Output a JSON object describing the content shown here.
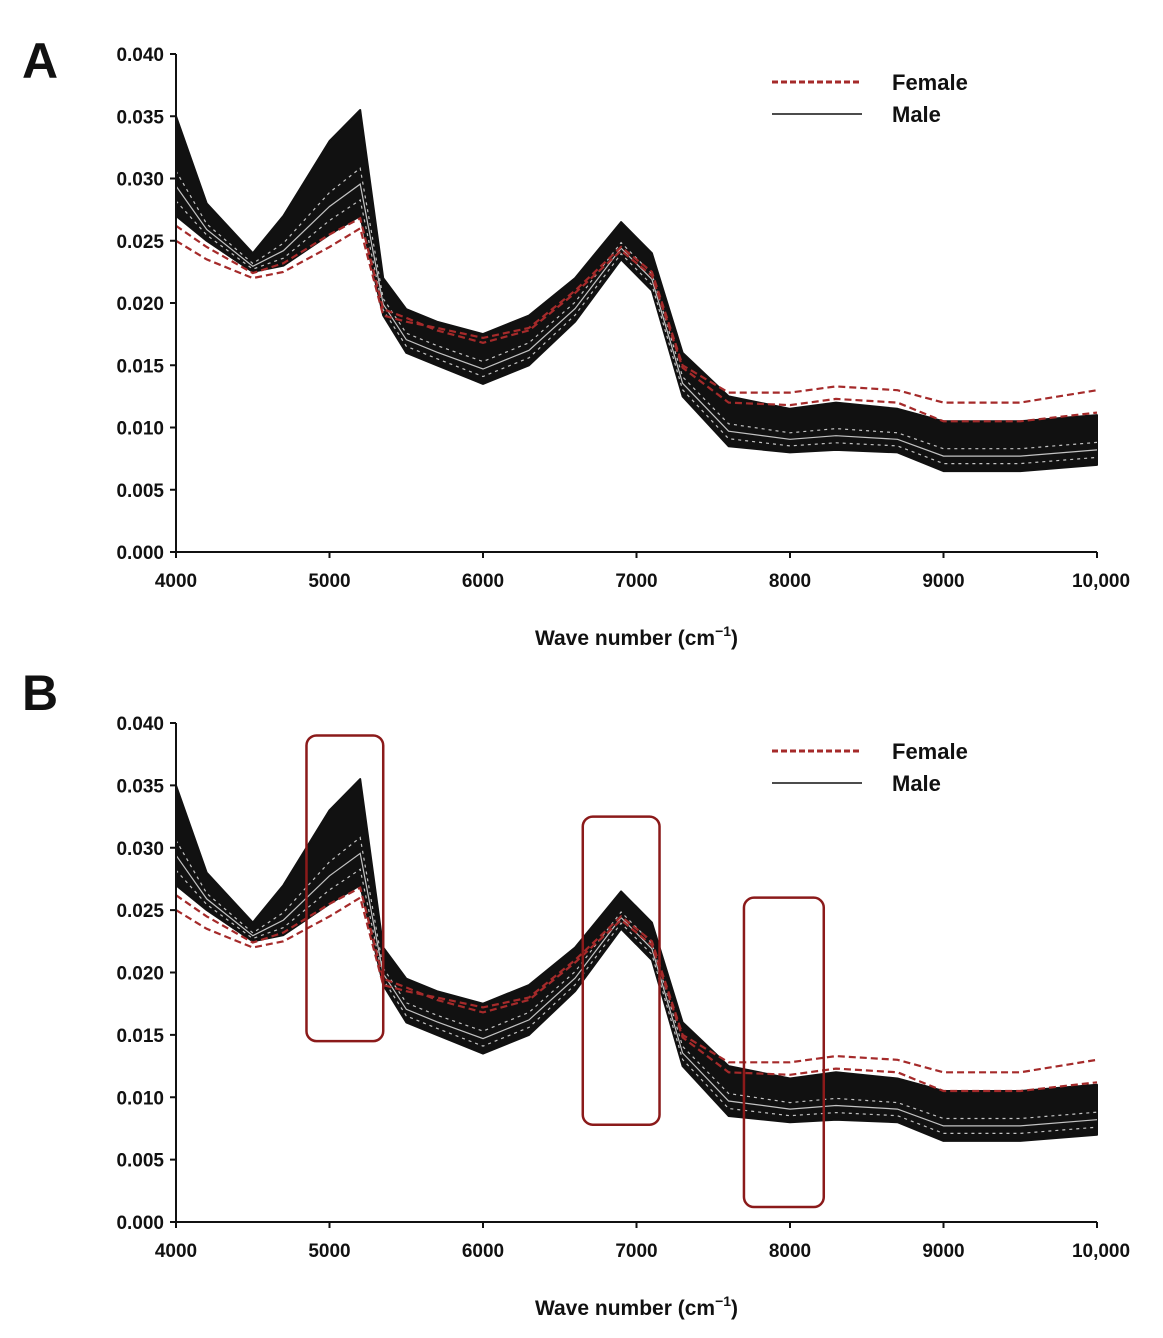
{
  "chart_data": [
    {
      "panel": "A",
      "type": "line",
      "xlabel": "Wave number (cm",
      "xlabel_sup": "−1",
      "xlabel_close": ")",
      "ylabel": "",
      "xlim": [
        4000,
        10000
      ],
      "ylim": [
        0.0,
        0.04
      ],
      "x_ticks": [
        "4000",
        "5000",
        "6000",
        "7000",
        "8000",
        "9000",
        "10,000"
      ],
      "y_ticks": [
        "0.000",
        "0.005",
        "0.010",
        "0.015",
        "0.020",
        "0.025",
        "0.030",
        "0.035",
        "0.040"
      ],
      "legend": [
        {
          "label": "Female",
          "style": "dashed",
          "color": "#a52a2a"
        },
        {
          "label": "Male",
          "style": "solid",
          "color": "#111111"
        }
      ],
      "x": [
        4000,
        4200,
        4500,
        4700,
        5000,
        5200,
        5350,
        5500,
        5700,
        6000,
        6300,
        6600,
        6900,
        7100,
        7300,
        7600,
        8000,
        8300,
        8700,
        9000,
        9500,
        10000
      ],
      "series": [
        {
          "name": "Male (upper envelope)",
          "group": "Male",
          "values": [
            0.035,
            0.028,
            0.024,
            0.027,
            0.033,
            0.0355,
            0.022,
            0.0195,
            0.0185,
            0.0175,
            0.019,
            0.022,
            0.0265,
            0.024,
            0.016,
            0.0125,
            0.0115,
            0.012,
            0.0115,
            0.0105,
            0.0105,
            0.011
          ]
        },
        {
          "name": "Male (lower envelope)",
          "group": "Male",
          "values": [
            0.027,
            0.025,
            0.0225,
            0.023,
            0.0255,
            0.027,
            0.019,
            0.016,
            0.015,
            0.0135,
            0.015,
            0.0185,
            0.0235,
            0.021,
            0.0125,
            0.0085,
            0.008,
            0.0082,
            0.008,
            0.0065,
            0.0065,
            0.007
          ]
        },
        {
          "name": "Female (lowest)",
          "group": "Female",
          "values": [
            0.025,
            0.0235,
            0.022,
            0.0225,
            0.0245,
            0.026,
            0.019,
            0.0185,
            0.018,
            0.0172,
            0.018,
            0.021,
            0.0245,
            0.0225,
            0.015,
            0.0128,
            0.0128,
            0.0133,
            0.013,
            0.012,
            0.012,
            0.013
          ]
        },
        {
          "name": "Female (second)",
          "group": "Female",
          "values": [
            0.0262,
            0.0245,
            0.0224,
            0.0232,
            0.0255,
            0.0268,
            0.0195,
            0.0188,
            0.0178,
            0.0168,
            0.0178,
            0.0208,
            0.0242,
            0.0222,
            0.0148,
            0.012,
            0.0118,
            0.0123,
            0.012,
            0.0105,
            0.0105,
            0.0112
          ]
        }
      ]
    },
    {
      "panel": "B",
      "type": "line",
      "xlabel": "Wave number (cm",
      "xlabel_sup": "−1",
      "xlabel_close": ")",
      "ylabel": "",
      "xlim": [
        4000,
        10000
      ],
      "ylim": [
        0.0,
        0.04
      ],
      "x_ticks": [
        "4000",
        "5000",
        "6000",
        "7000",
        "8000",
        "9000",
        "10,000"
      ],
      "y_ticks": [
        "0.000",
        "0.005",
        "0.010",
        "0.015",
        "0.020",
        "0.025",
        "0.030",
        "0.035",
        "0.040"
      ],
      "legend": [
        {
          "label": "Female",
          "style": "dashed",
          "color": "#a52a2a"
        },
        {
          "label": "Male",
          "style": "solid",
          "color": "#111111"
        }
      ],
      "highlight_regions": [
        {
          "x_from": 4850,
          "x_to": 5350,
          "y_from": 0.0145,
          "y_to": 0.039
        },
        {
          "x_from": 6650,
          "x_to": 7150,
          "y_from": 0.0078,
          "y_to": 0.0325
        },
        {
          "x_from": 7700,
          "x_to": 8220,
          "y_from": 0.0012,
          "y_to": 0.026
        }
      ],
      "x": [
        4000,
        4200,
        4500,
        4700,
        5000,
        5200,
        5350,
        5500,
        5700,
        6000,
        6300,
        6600,
        6900,
        7100,
        7300,
        7600,
        8000,
        8300,
        8700,
        9000,
        9500,
        10000
      ],
      "series": [
        {
          "name": "Male (upper envelope)",
          "group": "Male",
          "values": [
            0.035,
            0.028,
            0.024,
            0.027,
            0.033,
            0.0355,
            0.022,
            0.0195,
            0.0185,
            0.0175,
            0.019,
            0.022,
            0.0265,
            0.024,
            0.016,
            0.0125,
            0.0115,
            0.012,
            0.0115,
            0.0105,
            0.0105,
            0.011
          ]
        },
        {
          "name": "Male (lower envelope)",
          "group": "Male",
          "values": [
            0.027,
            0.025,
            0.0225,
            0.023,
            0.0255,
            0.027,
            0.019,
            0.016,
            0.015,
            0.0135,
            0.015,
            0.0185,
            0.0235,
            0.021,
            0.0125,
            0.0085,
            0.008,
            0.0082,
            0.008,
            0.0065,
            0.0065,
            0.007
          ]
        },
        {
          "name": "Female (lowest)",
          "group": "Female",
          "values": [
            0.025,
            0.0235,
            0.022,
            0.0225,
            0.0245,
            0.026,
            0.019,
            0.0185,
            0.018,
            0.0172,
            0.018,
            0.021,
            0.0245,
            0.0225,
            0.015,
            0.0128,
            0.0128,
            0.0133,
            0.013,
            0.012,
            0.012,
            0.013
          ]
        },
        {
          "name": "Female (second)",
          "group": "Female",
          "values": [
            0.0262,
            0.0245,
            0.0224,
            0.0232,
            0.0255,
            0.0268,
            0.0195,
            0.0188,
            0.0178,
            0.0168,
            0.0178,
            0.0208,
            0.0242,
            0.0222,
            0.0148,
            0.012,
            0.0118,
            0.0123,
            0.012,
            0.0105,
            0.0105,
            0.0112
          ]
        }
      ]
    }
  ],
  "colors": {
    "female": "#a52a2a",
    "male": "#111111",
    "highlight_box": "#8b1a1a",
    "axis": "#111111"
  }
}
